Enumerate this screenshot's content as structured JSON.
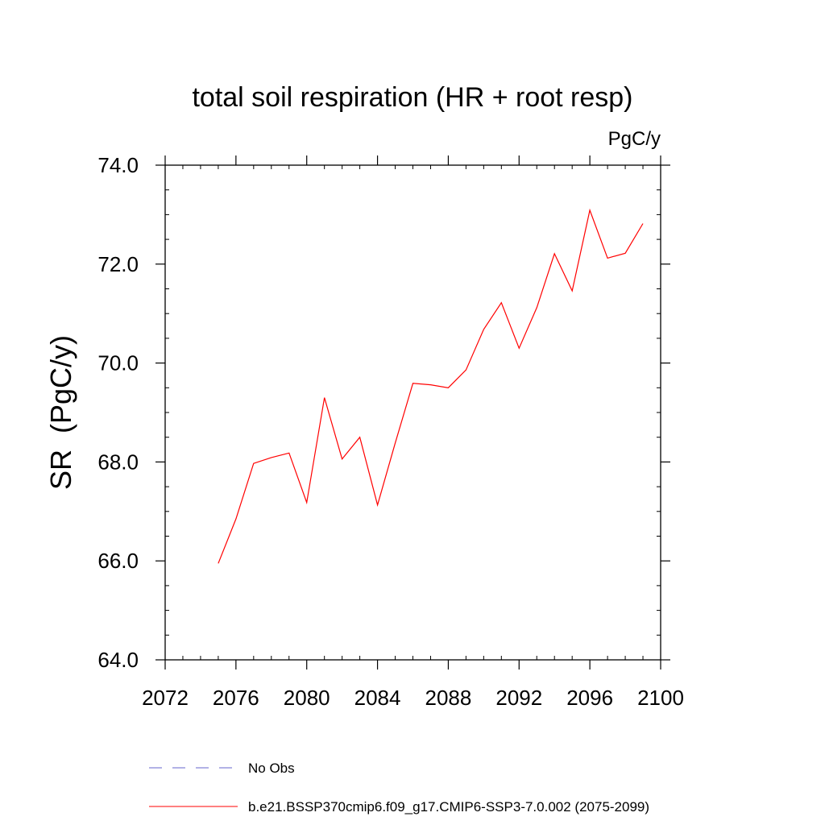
{
  "chart_data": {
    "type": "line",
    "title": "total soil respiration (HR + root resp)",
    "units_label": "PgC/y",
    "ylabel": "SR  (PgC/y)",
    "xlabel": "",
    "xlim": [
      2072,
      2100
    ],
    "ylim": [
      64.0,
      74.0
    ],
    "x_ticks": [
      "2072",
      "2076",
      "2080",
      "2084",
      "2088",
      "2092",
      "2096",
      "2100"
    ],
    "y_ticks": [
      "64.0",
      "66.0",
      "68.0",
      "70.0",
      "72.0",
      "74.0"
    ],
    "grid": false,
    "series": [
      {
        "name": "b.e21.BSSP370cmip6.f09_g17.CMIP6-SSP3-7.0.002 (2075-2099)",
        "color": "#ff0000",
        "style": "solid",
        "x": [
          2075,
          2076,
          2077,
          2078,
          2079,
          2080,
          2081,
          2082,
          2083,
          2084,
          2085,
          2086,
          2087,
          2088,
          2089,
          2090,
          2091,
          2092,
          2093,
          2094,
          2095,
          2096,
          2097,
          2098,
          2099
        ],
        "y": [
          65.95,
          66.85,
          67.97,
          68.09,
          68.18,
          67.18,
          69.3,
          68.06,
          68.5,
          67.13,
          68.38,
          69.59,
          69.56,
          69.5,
          69.86,
          70.68,
          71.22,
          70.3,
          71.12,
          72.21,
          71.46,
          73.09,
          72.12,
          72.22,
          72.82
        ]
      }
    ],
    "legend": {
      "placement": "bottom",
      "entries": [
        {
          "label": "No Obs",
          "color": "#6666cc",
          "style": "dashed"
        },
        {
          "label": "b.e21.BSSP370cmip6.f09_g17.CMIP6-SSP3-7.0.002 (2075-2099)",
          "color": "#ff0000",
          "style": "solid"
        }
      ]
    }
  }
}
